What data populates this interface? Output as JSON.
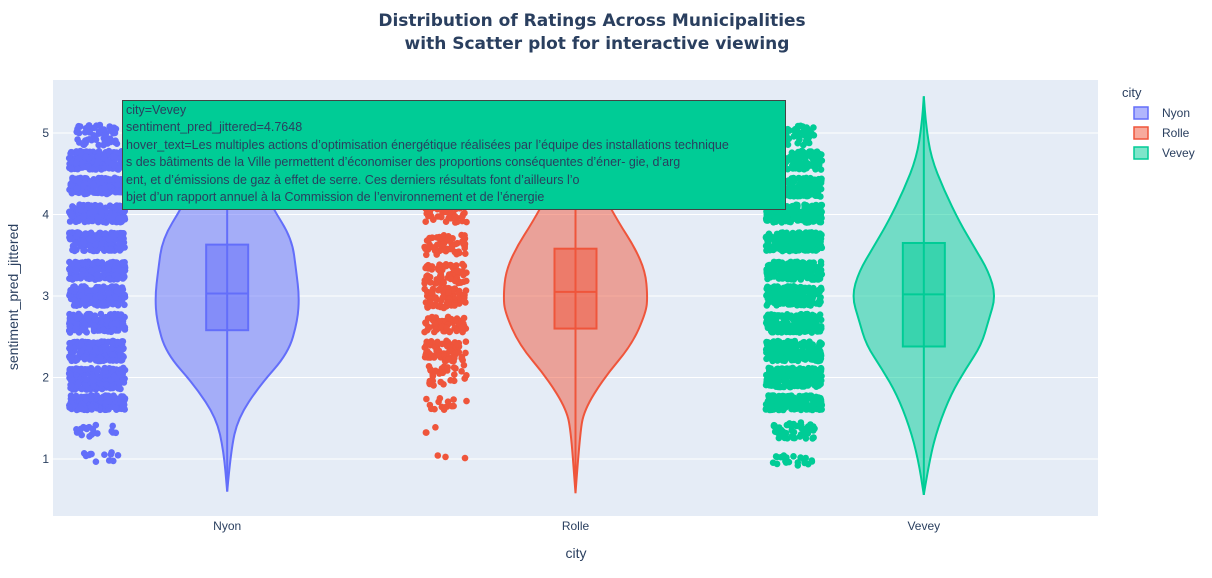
{
  "chart_data": {
    "type": "violin",
    "title_lines": [
      "Distribution of Ratings Across Municipalities",
      "with Scatter plot for interactive viewing"
    ],
    "xlabel": "city",
    "ylabel": "sentiment_pred_jittered",
    "categories": [
      "Nyon",
      "Rolle",
      "Vevey"
    ],
    "ylim": [
      0.3,
      5.65
    ],
    "yticks": [
      1,
      2,
      3,
      4,
      5
    ],
    "grid": true,
    "legend": {
      "title": "city",
      "placement": "right",
      "entries": [
        "Nyon",
        "Rolle",
        "Vevey"
      ]
    },
    "colors": {
      "Nyon": "#636efa",
      "Rolle": "#ef553b",
      "Vevey": "#00cc96",
      "plot_bg": "#e5ecf6",
      "text": "#2a3f5f"
    },
    "series": [
      {
        "name": "Nyon",
        "box": {
          "q1": 2.58,
          "median": 3.03,
          "q3": 3.63,
          "lowerfence": 0.6,
          "upperfence": 5.2
        },
        "kde_profile": [
          [
            0.6,
            0.0
          ],
          [
            1.1,
            0.05
          ],
          [
            1.5,
            0.15
          ],
          [
            1.9,
            0.45
          ],
          [
            2.3,
            0.85
          ],
          [
            2.7,
            0.98
          ],
          [
            3.0,
            1.0
          ],
          [
            3.3,
            0.96
          ],
          [
            3.7,
            0.9
          ],
          [
            4.1,
            0.62
          ],
          [
            4.5,
            0.4
          ],
          [
            4.9,
            0.15
          ],
          [
            5.2,
            0.0
          ]
        ],
        "point_bands": [
          [
            0.95,
            1.1,
            12
          ],
          [
            1.25,
            1.42,
            20
          ],
          [
            1.6,
            1.78,
            200
          ],
          [
            1.85,
            2.12,
            200
          ],
          [
            2.2,
            2.45,
            200
          ],
          [
            2.55,
            2.78,
            200
          ],
          [
            2.88,
            3.12,
            200
          ],
          [
            3.2,
            3.42,
            200
          ],
          [
            3.55,
            3.78,
            200
          ],
          [
            3.9,
            4.12,
            200
          ],
          [
            4.25,
            4.45,
            200
          ],
          [
            4.55,
            4.78,
            150
          ],
          [
            4.85,
            5.1,
            60
          ]
        ]
      },
      {
        "name": "Rolle",
        "box": {
          "q1": 2.6,
          "median": 3.05,
          "q3": 3.58,
          "lowerfence": 0.58,
          "upperfence": 5.2
        },
        "kde_profile": [
          [
            0.58,
            0.0
          ],
          [
            1.3,
            0.06
          ],
          [
            1.6,
            0.12
          ],
          [
            2.0,
            0.4
          ],
          [
            2.4,
            0.78
          ],
          [
            2.8,
            0.98
          ],
          [
            3.0,
            1.0
          ],
          [
            3.3,
            0.97
          ],
          [
            3.6,
            0.82
          ],
          [
            3.9,
            0.6
          ],
          [
            4.3,
            0.35
          ],
          [
            4.7,
            0.12
          ],
          [
            5.2,
            0.0
          ]
        ],
        "point_bands": [
          [
            1.0,
            1.05,
            3
          ],
          [
            1.3,
            1.4,
            3
          ],
          [
            1.6,
            1.75,
            15
          ],
          [
            1.9,
            2.15,
            30
          ],
          [
            2.2,
            2.45,
            70
          ],
          [
            2.55,
            2.75,
            60
          ],
          [
            2.85,
            3.1,
            80
          ],
          [
            3.15,
            3.4,
            70
          ],
          [
            3.5,
            3.75,
            60
          ],
          [
            3.9,
            4.1,
            40
          ],
          [
            4.3,
            4.45,
            25
          ],
          [
            4.55,
            4.8,
            15
          ],
          [
            4.9,
            5.05,
            10
          ]
        ]
      },
      {
        "name": "Vevey",
        "box": {
          "q1": 2.38,
          "median": 3.02,
          "q3": 3.65,
          "lowerfence": 0.56,
          "upperfence": 5.45
        },
        "kde_profile": [
          [
            0.56,
            0.0
          ],
          [
            1.0,
            0.08
          ],
          [
            1.4,
            0.2
          ],
          [
            1.8,
            0.38
          ],
          [
            2.1,
            0.58
          ],
          [
            2.4,
            0.8
          ],
          [
            2.7,
            0.9
          ],
          [
            3.0,
            1.0
          ],
          [
            3.3,
            0.9
          ],
          [
            3.6,
            0.7
          ],
          [
            3.9,
            0.5
          ],
          [
            4.3,
            0.28
          ],
          [
            4.7,
            0.1
          ],
          [
            5.1,
            0.03
          ],
          [
            5.45,
            0.0
          ]
        ],
        "point_bands": [
          [
            0.92,
            1.05,
            20
          ],
          [
            1.25,
            1.45,
            50
          ],
          [
            1.6,
            1.78,
            200
          ],
          [
            1.88,
            2.12,
            200
          ],
          [
            2.2,
            2.45,
            200
          ],
          [
            2.55,
            2.78,
            200
          ],
          [
            2.88,
            3.12,
            200
          ],
          [
            3.2,
            3.42,
            200
          ],
          [
            3.55,
            3.78,
            200
          ],
          [
            3.9,
            4.12,
            200
          ],
          [
            4.22,
            4.45,
            200
          ],
          [
            4.55,
            4.78,
            120
          ],
          [
            4.85,
            5.1,
            60
          ]
        ]
      }
    ]
  },
  "hover": {
    "lines": [
      "city=Vevey",
      "sentiment_pred_jittered=4.7648",
      "hover_text=Les multiples actions d’optimisation énergétique réalisées par l’équipe des  installations technique",
      "s des bâtiments de la Ville permettent d’économiser des proportions conséquentes d’éner- gie,  d’arg",
      "ent,  et  d’émissions  de  gaz  à  effet  de  serre. Ces  derniers  résultats  font  d’ailleurs  l’o",
      "bjet  d’un  rapport  annuel à la Commission de l’environnement et de l’énergie"
    ]
  }
}
